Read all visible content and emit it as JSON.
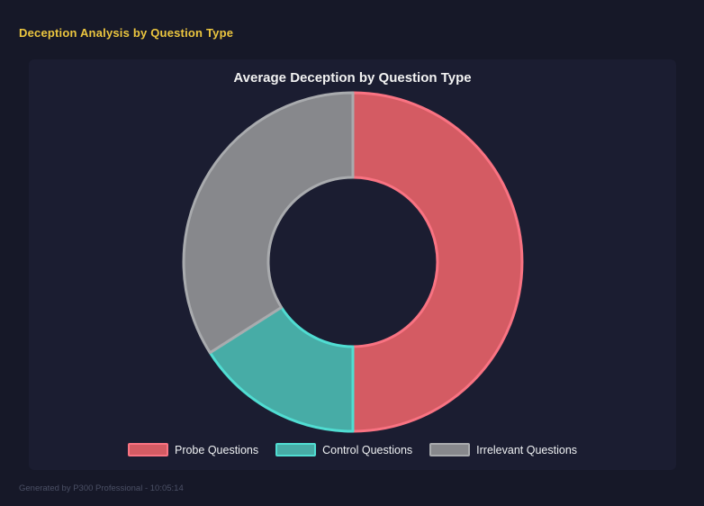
{
  "header": {
    "title": "Deception Analysis by Question Type"
  },
  "footer": {
    "text": "Generated by P300 Professional - 10:05:14"
  },
  "theme": {
    "page_bg": "#161828",
    "panel_bg": "#1b1d31",
    "page_title_color": "#ecc63f",
    "chart_title_color": "#f2f2f2",
    "legend_text_color": "#eef0f2",
    "footer_text_color": "#4b5065"
  },
  "chart_data": {
    "type": "pie",
    "subtype": "doughnut",
    "title": "Average Deception by Question Type",
    "labels": [
      "Probe Questions",
      "Control Questions",
      "Irrelevant Questions"
    ],
    "values": [
      50,
      16,
      34
    ],
    "values_note": "percent share of the ring, estimated from segment angles; first segment starts at 12 o'clock and series runs clockwise",
    "segment_fill_colors": [
      "#d45b63",
      "#47aca6",
      "#87888c"
    ],
    "segment_border_colors": [
      "#f97382",
      "#50ddd2",
      "#a9abae"
    ],
    "border_width": 3,
    "cutout_ratio": 0.5,
    "legend_position": "bottom",
    "grid": false
  }
}
